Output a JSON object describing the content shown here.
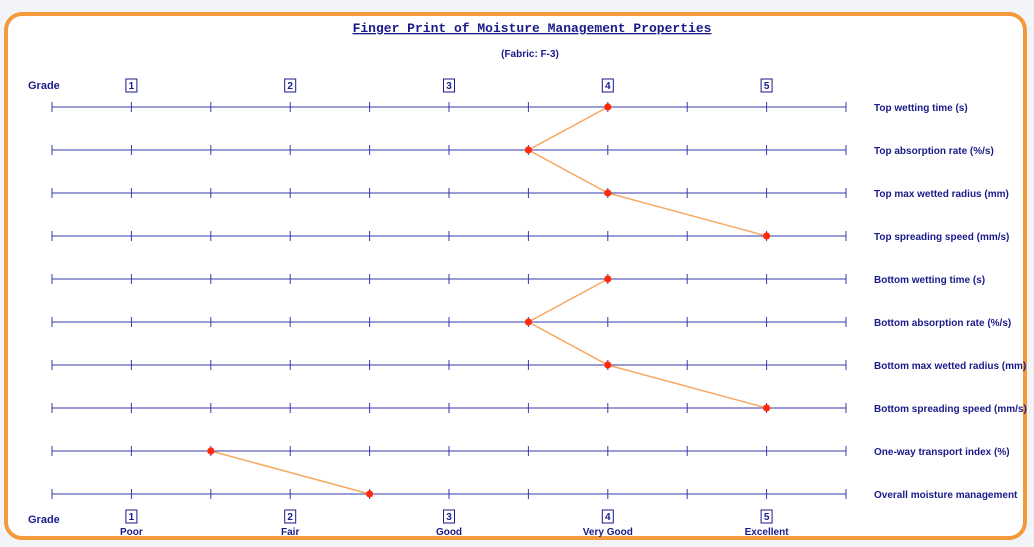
{
  "chart_data": {
    "type": "line",
    "title": "Finger Print of Moisture Management Properties",
    "subtitle": "(Fabric: F-3)",
    "grade_label": "Grade",
    "grades": [
      "1",
      "2",
      "3",
      "4",
      "5"
    ],
    "grade_names": [
      "Poor",
      "Fair",
      "Good",
      "Very Good",
      "Excellent"
    ],
    "xlim": [
      0.5,
      5.5
    ],
    "properties": [
      {
        "label": "Top wetting time (s)",
        "grade": 4
      },
      {
        "label": "Top absorption rate (%/s)",
        "grade": 3.5
      },
      {
        "label": "Top max wetted radius (mm)",
        "grade": 4
      },
      {
        "label": "Top spreading speed (mm/s)",
        "grade": 5
      },
      {
        "label": "Bottom wetting time (s)",
        "grade": 4
      },
      {
        "label": "Bottom absorption rate (%/s)",
        "grade": 3.5
      },
      {
        "label": "Bottom max wetted radius (mm)",
        "grade": 4
      },
      {
        "label": "Bottom spreading speed (mm/s)",
        "grade": 5
      },
      {
        "label": "One-way transport index (%)",
        "grade": 1.5
      },
      {
        "label": "Overall moisture management",
        "grade": 2.5
      }
    ],
    "line_groups": [
      [
        0,
        1,
        2,
        3
      ],
      [
        4,
        5,
        6,
        7
      ],
      [
        8,
        9
      ]
    ]
  },
  "colors": {
    "frame": "#f39a3a",
    "axis": "#3a3aa8",
    "marker": "#ff2a0a",
    "connector": "#f7a860",
    "text": "#1a1a8a"
  }
}
